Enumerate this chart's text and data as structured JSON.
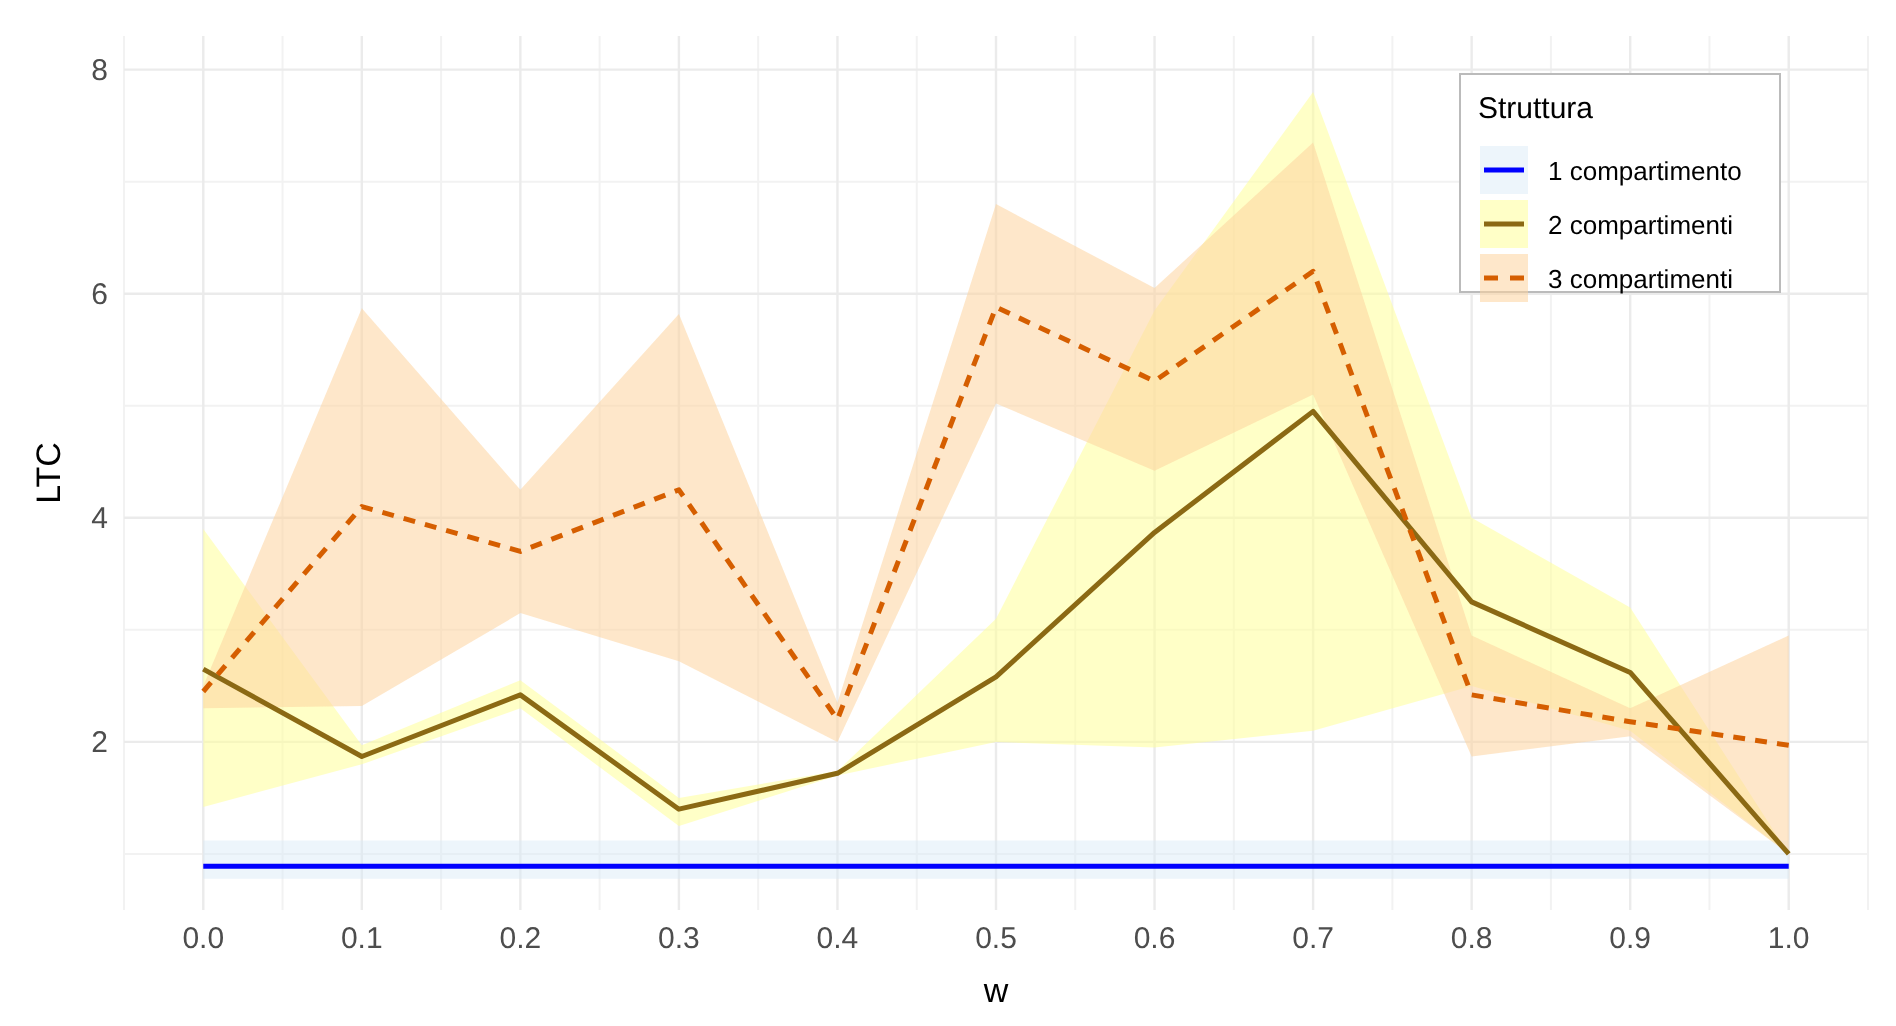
{
  "chart_data": {
    "type": "line",
    "xlabel": "w",
    "ylabel": "LTC",
    "legend_title": "Struttura",
    "legend": "top right",
    "grid": true,
    "x": [
      0,
      0.1,
      0.2,
      0.3,
      0.4,
      0.5,
      0.6,
      0.7,
      0.8,
      0.9,
      1
    ],
    "xlim": [
      -0.05,
      1.05
    ],
    "ylim": [
      0.5,
      8.3
    ],
    "xticks": [
      {
        "value": 0,
        "label": "0.0"
      },
      {
        "value": 0.1,
        "label": "0.1"
      },
      {
        "value": 0.2,
        "label": "0.2"
      },
      {
        "value": 0.3,
        "label": "0.3"
      },
      {
        "value": 0.4,
        "label": "0.4"
      },
      {
        "value": 0.5,
        "label": "0.5"
      },
      {
        "value": 0.6,
        "label": "0.6"
      },
      {
        "value": 0.7,
        "label": "0.7"
      },
      {
        "value": 0.8,
        "label": "0.8"
      },
      {
        "value": 0.9,
        "label": "0.9"
      },
      {
        "value": 1,
        "label": "1.0"
      }
    ],
    "yticks": [
      2,
      4,
      6,
      8
    ],
    "series": [
      {
        "name": "1 compartimento",
        "color": "#0000ff",
        "line_style": "solid",
        "values": [
          0.89,
          0.89,
          0.89,
          0.89,
          0.89,
          0.89,
          0.89,
          0.89,
          0.89,
          0.89,
          0.89
        ],
        "lower": [
          0.78,
          0.78,
          0.78,
          0.78,
          0.78,
          0.78,
          0.78,
          0.78,
          0.78,
          0.78,
          0.78
        ],
        "upper": [
          1.12,
          1.12,
          1.12,
          1.12,
          1.12,
          1.12,
          1.12,
          1.12,
          1.12,
          1.12,
          1.12
        ]
      },
      {
        "name": "2 compartimenti",
        "color": "#8b6914",
        "line_style": "solid",
        "values": [
          2.65,
          1.87,
          2.42,
          1.4,
          1.72,
          2.58,
          3.87,
          4.95,
          3.25,
          2.62,
          1.0
        ],
        "lower": [
          1.42,
          1.8,
          2.3,
          1.25,
          1.7,
          2.0,
          1.95,
          2.1,
          2.5,
          2.1,
          1.0
        ],
        "upper": [
          3.9,
          1.97,
          2.55,
          1.5,
          1.74,
          3.1,
          5.85,
          7.8,
          4.0,
          3.2,
          1.0
        ]
      },
      {
        "name": "3 compartimenti",
        "color": "#d55e00",
        "line_style": "dashed",
        "values": [
          2.45,
          4.1,
          3.7,
          4.25,
          2.2,
          5.88,
          5.22,
          6.2,
          2.42,
          2.18,
          1.97
        ],
        "lower": [
          2.3,
          2.32,
          3.15,
          2.72,
          2.0,
          5.02,
          4.42,
          5.1,
          1.87,
          2.05,
          1.0
        ],
        "upper": [
          2.5,
          5.87,
          4.25,
          5.82,
          2.35,
          6.8,
          6.05,
          7.35,
          2.95,
          2.3,
          2.95
        ]
      }
    ]
  }
}
